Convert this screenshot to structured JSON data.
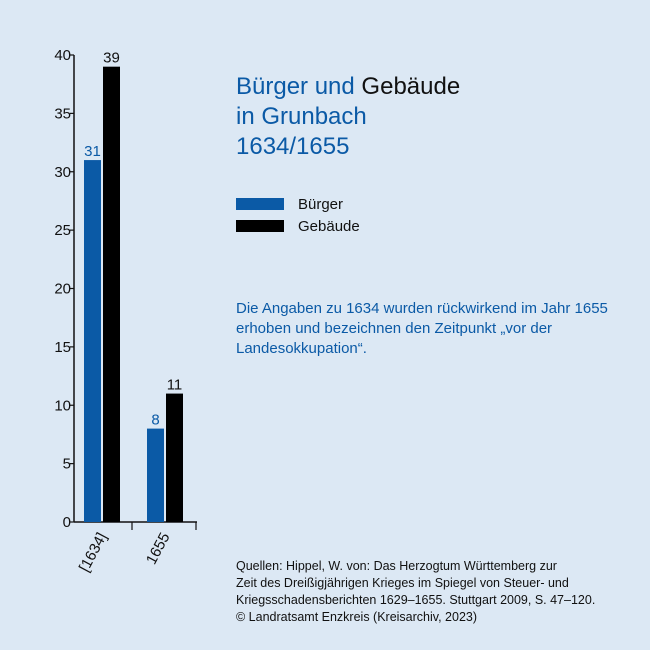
{
  "title": {
    "part1": "Bürger und",
    "part2": "Gebäude",
    "line2": "in Grunbach",
    "line3": "1634/1655"
  },
  "legend": [
    {
      "label": "Bürger",
      "color": "#0b5aa6"
    },
    {
      "label": "Gebäude",
      "color": "#000000"
    }
  ],
  "note": "Die Angaben zu 1634 wurden rückwirkend im Jahr 1655 erhoben und bezeichnen den Zeitpunkt „vor der Landesokkupation“.",
  "sources": [
    "Quellen: Hippel, W. von: Das Herzogtum Württemberg zur",
    "Zeit des Dreißigjährigen Krieges im Spiegel von Steuer- und",
    "Kriegsschadensberichten 1629–1655. Stuttgart 2009, S. 47–120.",
    "© Landratsamt Enzkreis (Kreisarchiv, 2023)"
  ],
  "chart_data": {
    "type": "bar",
    "categories": [
      "[1634]",
      "1655"
    ],
    "series": [
      {
        "name": "Bürger",
        "values": [
          31,
          8
        ],
        "color": "#0b5aa6",
        "label_color": "#0b5aa6"
      },
      {
        "name": "Gebäude",
        "values": [
          39,
          11
        ],
        "color": "#000000",
        "label_color": "#111111"
      }
    ],
    "ylim": [
      0,
      40
    ],
    "yticks": [
      0,
      5,
      10,
      15,
      20,
      25,
      30,
      35,
      40
    ],
    "grid": false,
    "legend_position": "right"
  }
}
